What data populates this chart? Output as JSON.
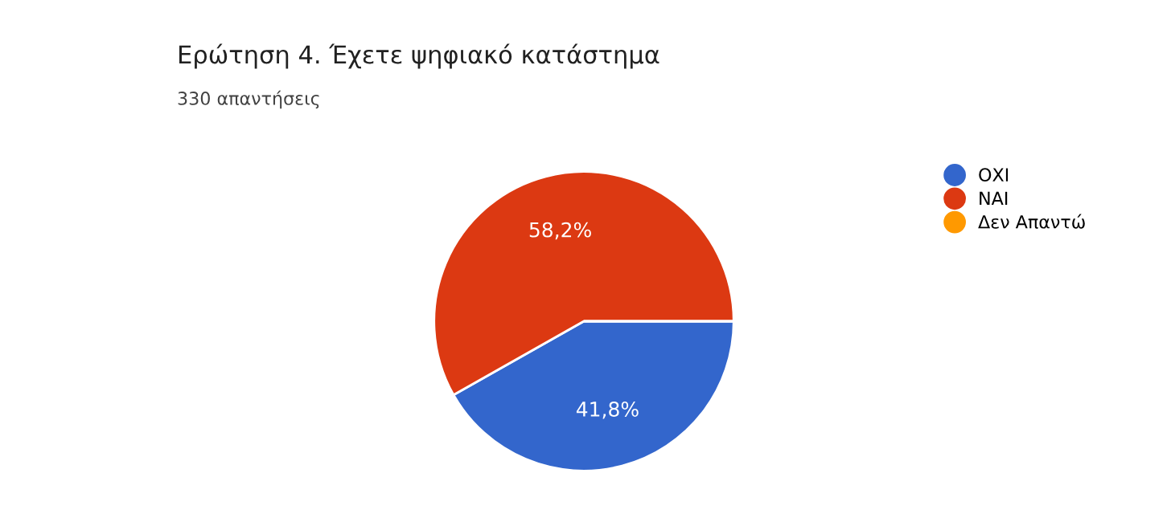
{
  "chart_data": {
    "type": "pie",
    "title": "Ερώτηση 4. Έχετε ψηφιακό κατάστημα",
    "subtitle": "330 απαντήσεις",
    "categories": [
      "ΟΧΙ",
      "ΝΑΙ",
      "Δεν Απαντώ"
    ],
    "values": [
      41.8,
      58.2,
      0
    ],
    "colors": [
      "#3366cc",
      "#dc3912",
      "#ff9900"
    ],
    "value_labels": [
      "41,8%",
      "58,2%",
      null
    ],
    "legend": "right"
  }
}
